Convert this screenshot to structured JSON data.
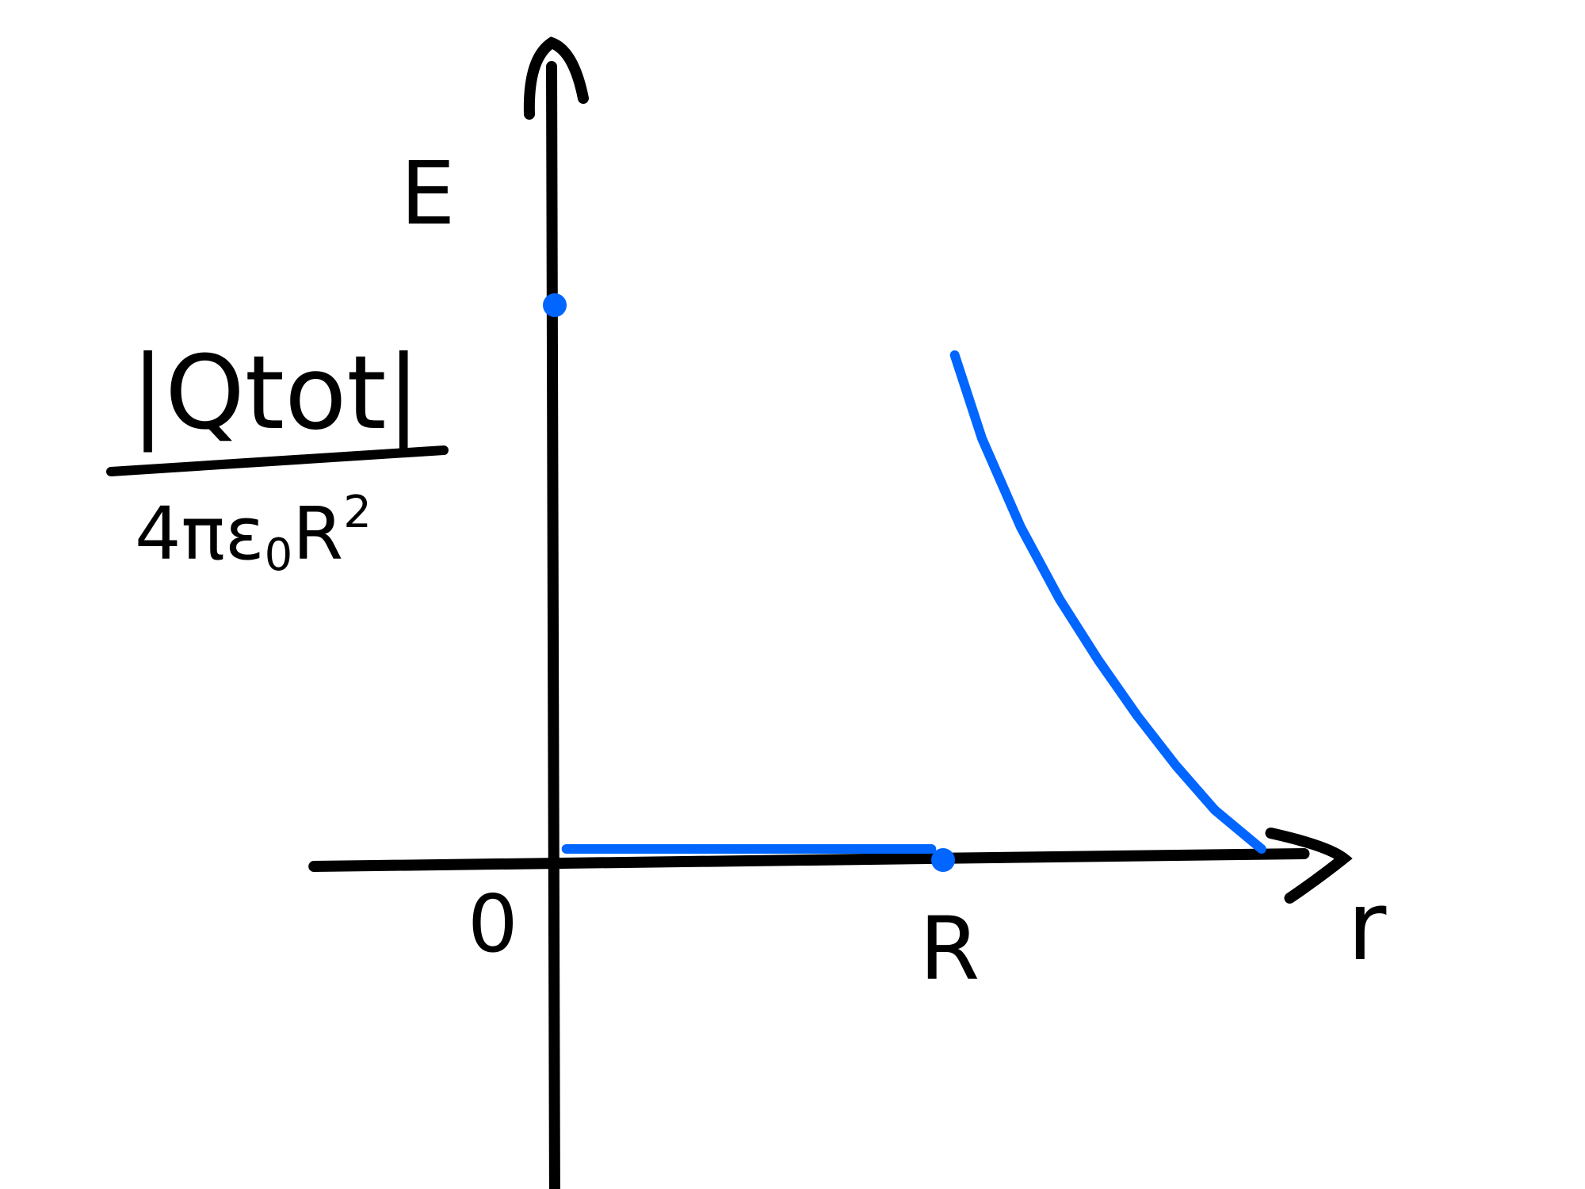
{
  "chart_data": {
    "type": "line",
    "title": "",
    "xlabel": "r",
    "ylabel": "E",
    "x_tick_labels": [
      "0",
      "R"
    ],
    "y_tick_label": {
      "numerator": "|Qtot|",
      "denominator_main": "4πε",
      "denominator_sub": "0",
      "denominator_tail": "R",
      "denominator_sup": "2"
    },
    "xlim": [
      -0.62,
      1.95
    ],
    "ylim": [
      -0.63,
      1.43
    ],
    "series": [
      {
        "color": "#0066ff",
        "segments": [
          {
            "x": [
              0.03,
              0.2,
              0.4,
              0.6,
              0.8,
              0.97
            ],
            "y": [
              0.02,
              0.02,
              0.02,
              0.02,
              0.02,
              0.02
            ]
          },
          {
            "x": [
              1.03,
              1.1,
              1.2,
              1.3,
              1.4,
              1.5,
              1.6,
              1.7,
              1.82
            ],
            "y": [
              0.91,
              0.76,
              0.6,
              0.47,
              0.36,
              0.26,
              0.17,
              0.09,
              0.02
            ]
          }
        ],
        "points": [
          {
            "x": 0,
            "y": 1.0
          },
          {
            "x": 1.0,
            "y": 0.0
          }
        ]
      }
    ]
  }
}
